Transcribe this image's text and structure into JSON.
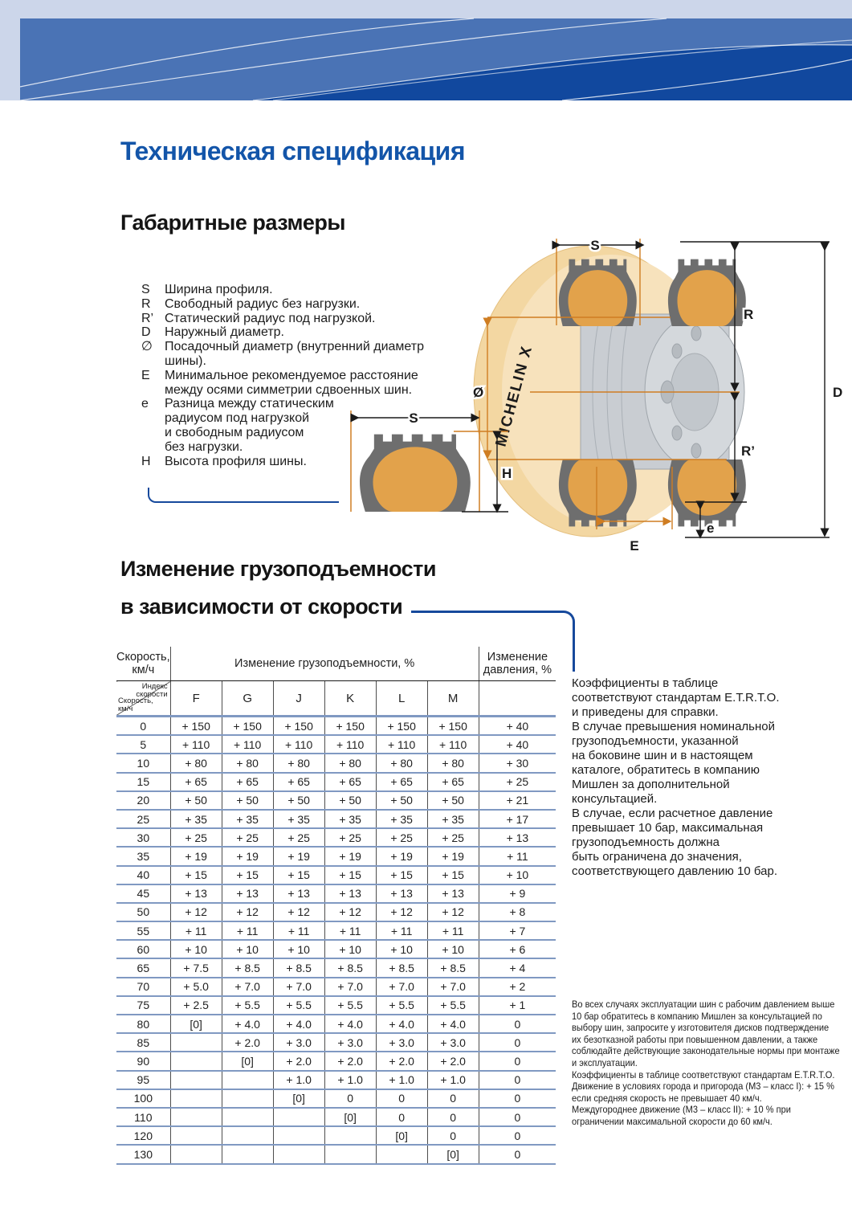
{
  "page": {
    "title": "Техническая спецификация"
  },
  "colors": {
    "band_light": "#ccd6ea",
    "band_mid": "#4a73b5",
    "band_dark": "#11489e",
    "title_blue": "#1355a9",
    "callout_blue": "#16499c",
    "row_line": "#8099c2",
    "col_line": "#4d4d4d",
    "tire_gray": "#6e6e6e",
    "tire_tan": "#e2a24b",
    "disc_tan": "#f3d7a2",
    "rim_gray": "#c9cdd2",
    "dim_orange": "#cf7d22"
  },
  "dimensions": {
    "title": "Габаритные размеры",
    "legend": [
      {
        "symbol": "S",
        "text": "Ширина профиля."
      },
      {
        "symbol": "R",
        "text": "Свободный радиус без нагрузки."
      },
      {
        "symbol": "R’",
        "text": "Статический радиус под нагрузкой."
      },
      {
        "symbol": "D",
        "text": "Наружный диаметр."
      },
      {
        "symbol": "∅",
        "text": "Посадочный диаметр (внутренний диаметр\nшины)."
      },
      {
        "symbol": "E",
        "text": "Минимальное рекомендуемое расстояние\nмежду осями симметрии сдвоенных шин."
      },
      {
        "symbol": "e",
        "text": "Разница между статическим\nрадиусом под нагрузкой\nи свободным радиусом\nбез нагрузки."
      },
      {
        "symbol": "H",
        "text": "Высота профиля шины."
      }
    ],
    "diagram": {
      "brand": "MICHELIN X",
      "s": "S",
      "r": "R",
      "r_static": "R’",
      "d": "D",
      "rim_dia": "Ø",
      "e_axis": "E",
      "e_small": "e",
      "profile_s": "S",
      "profile_h": "H"
    }
  },
  "load_section": {
    "title_line1": "Изменение грузоподъемности",
    "title_line2": "в зависимости от скорости",
    "table": {
      "col_speed_header": "Скорость,\nкм/ч",
      "col_load_header": "Изменение грузоподъемности, %",
      "col_pressure_header": "Изменение\nдавления, %",
      "corner_top": "Индекс\nскорости",
      "corner_bottom": "Скорость,\nкм/ч",
      "speed_indexes": [
        "F",
        "G",
        "J",
        "K",
        "L",
        "M"
      ],
      "rows": [
        {
          "speed": "0",
          "values": [
            "+ 150",
            "+ 150",
            "+ 150",
            "+ 150",
            "+ 150",
            "+ 150"
          ],
          "pressure": "+ 40"
        },
        {
          "speed": "5",
          "values": [
            "+ 110",
            "+ 110",
            "+ 110",
            "+ 110",
            "+ 110",
            "+ 110"
          ],
          "pressure": "+ 40"
        },
        {
          "speed": "10",
          "values": [
            "+ 80",
            "+ 80",
            "+ 80",
            "+ 80",
            "+ 80",
            "+ 80"
          ],
          "pressure": "+ 30"
        },
        {
          "speed": "15",
          "values": [
            "+ 65",
            "+ 65",
            "+ 65",
            "+ 65",
            "+ 65",
            "+ 65"
          ],
          "pressure": "+ 25"
        },
        {
          "speed": "20",
          "values": [
            "+ 50",
            "+ 50",
            "+ 50",
            "+ 50",
            "+ 50",
            "+ 50"
          ],
          "pressure": "+ 21"
        },
        {
          "speed": "25",
          "values": [
            "+ 35",
            "+ 35",
            "+ 35",
            "+ 35",
            "+ 35",
            "+ 35"
          ],
          "pressure": "+ 17"
        },
        {
          "speed": "30",
          "values": [
            "+ 25",
            "+ 25",
            "+ 25",
            "+ 25",
            "+ 25",
            "+ 25"
          ],
          "pressure": "+ 13"
        },
        {
          "speed": "35",
          "values": [
            "+ 19",
            "+ 19",
            "+ 19",
            "+ 19",
            "+ 19",
            "+ 19"
          ],
          "pressure": "+ 11"
        },
        {
          "speed": "40",
          "values": [
            "+ 15",
            "+ 15",
            "+ 15",
            "+ 15",
            "+ 15",
            "+ 15"
          ],
          "pressure": "+ 10"
        },
        {
          "speed": "45",
          "values": [
            "+ 13",
            "+ 13",
            "+ 13",
            "+ 13",
            "+ 13",
            "+ 13"
          ],
          "pressure": "+ 9"
        },
        {
          "speed": "50",
          "values": [
            "+ 12",
            "+ 12",
            "+ 12",
            "+ 12",
            "+ 12",
            "+ 12"
          ],
          "pressure": "+ 8"
        },
        {
          "speed": "55",
          "values": [
            "+ 11",
            "+ 11",
            "+ 11",
            "+ 11",
            "+ 11",
            "+ 11"
          ],
          "pressure": "+ 7"
        },
        {
          "speed": "60",
          "values": [
            "+ 10",
            "+ 10",
            "+ 10",
            "+ 10",
            "+ 10",
            "+ 10"
          ],
          "pressure": "+ 6"
        },
        {
          "speed": "65",
          "values": [
            "+ 7.5",
            "+ 8.5",
            "+ 8.5",
            "+ 8.5",
            "+ 8.5",
            "+ 8.5"
          ],
          "pressure": "+ 4"
        },
        {
          "speed": "70",
          "values": [
            "+ 5.0",
            "+ 7.0",
            "+ 7.0",
            "+ 7.0",
            "+ 7.0",
            "+ 7.0"
          ],
          "pressure": "+ 2"
        },
        {
          "speed": "75",
          "values": [
            "+ 2.5",
            "+ 5.5",
            "+ 5.5",
            "+ 5.5",
            "+ 5.5",
            "+ 5.5"
          ],
          "pressure": "+ 1"
        },
        {
          "speed": "80",
          "values": [
            "[0]",
            "+ 4.0",
            "+ 4.0",
            "+ 4.0",
            "+ 4.0",
            "+ 4.0"
          ],
          "pressure": "0"
        },
        {
          "speed": "85",
          "values": [
            "",
            "+ 2.0",
            "+ 3.0",
            "+ 3.0",
            "+ 3.0",
            "+ 3.0"
          ],
          "pressure": "0"
        },
        {
          "speed": "90",
          "values": [
            "",
            "[0]",
            "+ 2.0",
            "+ 2.0",
            "+ 2.0",
            "+ 2.0"
          ],
          "pressure": "0"
        },
        {
          "speed": "95",
          "values": [
            "",
            "",
            "+ 1.0",
            "+ 1.0",
            "+ 1.0",
            "+ 1.0"
          ],
          "pressure": "0"
        },
        {
          "speed": "100",
          "values": [
            "",
            "",
            "[0]",
            "0",
            "0",
            "0"
          ],
          "pressure": "0"
        },
        {
          "speed": "110",
          "values": [
            "",
            "",
            "",
            "[0]",
            "0",
            "0"
          ],
          "pressure": "0"
        },
        {
          "speed": "120",
          "values": [
            "",
            "",
            "",
            "",
            "[0]",
            "0"
          ],
          "pressure": "0"
        },
        {
          "speed": "130",
          "values": [
            "",
            "",
            "",
            "",
            "",
            "[0]"
          ],
          "pressure": "0"
        }
      ]
    },
    "note_right_lines": [
      "Коэффициенты в таблице",
      "соответствуют стандартам E.T.R.T.O.",
      "и приведены для справки.",
      "В случае превышения номинальной",
      "грузоподъемности, указанной",
      "на боковине шин и в настоящем",
      "каталоге, обратитесь в компанию",
      "Мишлен за дополнительной",
      "консультацией.",
      "В случае, если расчетное давление",
      "превышает 10 бар, максимальная",
      "грузоподъемность должна",
      "быть ограничена до значения,",
      "соответствующего давлению 10 бар."
    ],
    "note_bottom_lines": [
      "Во всех случаях эксплуатации шин с рабочим давлением выше",
      "10 бар обратитесь в компанию Мишлен за консультацией по",
      "выбору шин, запросите у изготовителя дисков подтверждение",
      "их безотказной работы при повышенном давлении, а также",
      "соблюдайте действующие законодательные нормы при монтаже",
      "и эксплуатации.",
      "Коэффициенты в таблице соответствуют стандартам E.T.R.T.O.",
      "Движение в условиях города и пригорода (М3 – класс I): + 15 %",
      "если средняя скорость не превышает 40 км/ч.",
      "Междугороднее движение (М3 – класс II): + 10 % при",
      "ограничении максимальной скорости до 60 км/ч."
    ]
  }
}
